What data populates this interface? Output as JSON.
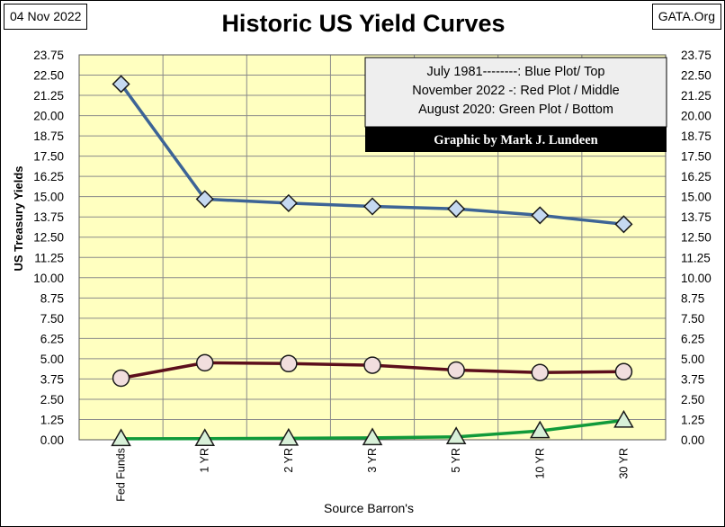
{
  "header": {
    "date": "04 Nov 2022",
    "source": "GATA.Org"
  },
  "chart_data": {
    "type": "line",
    "title": "Historic US Yield Curves",
    "xlabel": "Source Barron's",
    "ylabel": "US Treasury Yields",
    "categories": [
      "Fed Funds",
      "1 YR",
      "2 YR",
      "3 YR",
      "5 YR",
      "10 YR",
      "30 YR"
    ],
    "ylim": [
      0,
      23.75
    ],
    "yticks": [
      "0.00",
      "1.25",
      "2.50",
      "3.75",
      "5.00",
      "6.25",
      "7.50",
      "8.75",
      "10.00",
      "11.25",
      "12.50",
      "13.75",
      "15.00",
      "16.25",
      "17.50",
      "18.75",
      "20.00",
      "21.25",
      "22.50",
      "23.75"
    ],
    "grid": true,
    "series": [
      {
        "name": "July 1981",
        "color": "#3d6496",
        "marker": "diamond",
        "marker_fill": "#c5d9f1",
        "values": [
          21.95,
          14.85,
          14.6,
          14.4,
          14.25,
          13.85,
          13.3
        ]
      },
      {
        "name": "November 2022",
        "color": "#5c0f1c",
        "marker": "circle",
        "marker_fill": "#f1dede",
        "values": [
          3.8,
          4.75,
          4.7,
          4.6,
          4.3,
          4.15,
          4.2
        ]
      },
      {
        "name": "August 2020",
        "color": "#119a3a",
        "marker": "triangle",
        "marker_fill": "#d8f0d8",
        "values": [
          0.06,
          0.07,
          0.09,
          0.12,
          0.18,
          0.55,
          1.2
        ]
      }
    ],
    "legend": {
      "lines": [
        "July 1981--------: Blue Plot/ Top",
        "November 2022 -: Red Plot / Middle",
        "August 2020: Green Plot / Bottom"
      ],
      "credit": "Graphic by Mark J. Lundeen",
      "placement": "top-right"
    },
    "plot_background": "#ffffc0"
  }
}
